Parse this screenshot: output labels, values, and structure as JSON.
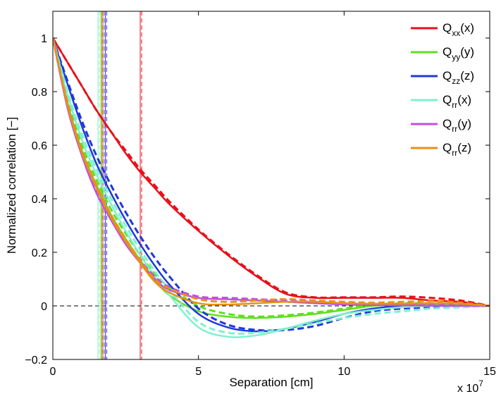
{
  "chart_data": {
    "type": "line",
    "title": "",
    "xlabel": "Separation [cm]",
    "ylabel": "Normalized correlation [−]",
    "x_multiplier_label": "x 10",
    "x_multiplier_exponent": "7",
    "xlim": [
      0,
      15
    ],
    "ylim": [
      -0.2,
      1.1
    ],
    "xticks": [
      0,
      5,
      10,
      15
    ],
    "xtick_labels": [
      "0",
      "5",
      "10",
      "15"
    ],
    "yticks": [
      -0.2,
      0,
      0.2,
      0.4,
      0.6,
      0.8,
      1
    ],
    "ytick_labels": [
      "−0.2",
      "0",
      "0.2",
      "0.4",
      "0.6",
      "0.8",
      "1"
    ],
    "grid": false,
    "legend_position": "top-right",
    "zero_line": {
      "y": 0,
      "color": "#000000",
      "style": "dashed"
    },
    "series": [
      {
        "name": "Qxx(x)",
        "label_main": "Q",
        "label_sub": "xx",
        "label_tail": "(x)",
        "color": "#e8101a",
        "x": [
          0,
          0.5,
          1,
          1.5,
          2,
          2.5,
          3,
          3.5,
          4,
          5,
          6,
          7,
          8,
          9,
          10,
          11,
          12,
          13,
          14,
          15
        ],
        "values": [
          1,
          0.91,
          0.82,
          0.73,
          0.65,
          0.57,
          0.5,
          0.44,
          0.38,
          0.28,
          0.19,
          0.11,
          0.045,
          0.03,
          0.03,
          0.03,
          0.03,
          0.02,
          0.015,
          0.0
        ],
        "dashed_values": [
          1,
          0.91,
          0.82,
          0.73,
          0.65,
          0.58,
          0.51,
          0.45,
          0.39,
          0.285,
          0.195,
          0.115,
          0.05,
          0.032,
          0.032,
          0.032,
          0.035,
          0.03,
          0.02,
          0.0
        ],
        "vline_x": 3.0
      },
      {
        "name": "Qyy(y)",
        "label_main": "Q",
        "label_sub": "yy",
        "label_tail": "(y)",
        "color": "#60e020",
        "x": [
          0,
          0.5,
          1,
          1.5,
          2,
          2.5,
          3,
          3.5,
          4,
          5,
          6,
          7,
          8,
          9,
          10,
          11,
          12,
          13,
          14,
          15
        ],
        "values": [
          1,
          0.76,
          0.58,
          0.45,
          0.34,
          0.25,
          0.17,
          0.1,
          0.04,
          -0.02,
          -0.04,
          -0.045,
          -0.04,
          -0.03,
          -0.015,
          0.0,
          0.005,
          0.005,
          0.005,
          0.0
        ],
        "dashed_values": [
          1,
          0.77,
          0.6,
          0.47,
          0.36,
          0.27,
          0.19,
          0.12,
          0.07,
          0.0,
          -0.03,
          -0.04,
          -0.035,
          -0.025,
          -0.01,
          0.005,
          0.01,
          0.01,
          0.005,
          0.0
        ],
        "vline_x": 1.65
      },
      {
        "name": "Qzz(z)",
        "label_main": "Q",
        "label_sub": "zz",
        "label_tail": "(z)",
        "color": "#2038d8",
        "x": [
          0,
          0.5,
          1,
          1.5,
          2,
          2.5,
          3,
          3.5,
          4,
          5,
          6,
          7,
          8,
          9,
          10,
          11,
          12,
          13,
          14,
          15
        ],
        "values": [
          1,
          0.83,
          0.67,
          0.53,
          0.42,
          0.32,
          0.23,
          0.15,
          0.08,
          -0.03,
          -0.08,
          -0.095,
          -0.085,
          -0.06,
          -0.03,
          -0.01,
          0.0,
          0.0,
          0.0,
          0.0
        ],
        "dashed_values": [
          1,
          0.84,
          0.69,
          0.56,
          0.45,
          0.35,
          0.26,
          0.18,
          0.11,
          -0.01,
          -0.07,
          -0.09,
          -0.09,
          -0.075,
          -0.045,
          -0.02,
          -0.01,
          -0.005,
          0.0,
          0.0
        ],
        "vline_x": 1.8
      },
      {
        "name": "Qrr(x)",
        "label_main": "Q",
        "label_sub": "rr",
        "label_tail": "(x)",
        "color": "#7ff0d0",
        "x": [
          0,
          0.5,
          1,
          1.5,
          2,
          2.5,
          3,
          3.5,
          4,
          5,
          6,
          7,
          8,
          9,
          10,
          11,
          12,
          13,
          14,
          15
        ],
        "values": [
          1,
          0.79,
          0.62,
          0.49,
          0.38,
          0.28,
          0.19,
          0.11,
          0.04,
          -0.08,
          -0.115,
          -0.11,
          -0.085,
          -0.055,
          -0.03,
          -0.015,
          -0.005,
          0.0,
          0.0,
          0.0
        ],
        "dashed_values": [
          1,
          0.8,
          0.64,
          0.51,
          0.4,
          0.3,
          0.21,
          0.13,
          0.06,
          -0.06,
          -0.1,
          -0.1,
          -0.085,
          -0.065,
          -0.045,
          -0.03,
          -0.02,
          -0.01,
          -0.005,
          0.0
        ],
        "vline_x": 1.55
      },
      {
        "name": "Qrr(y)",
        "label_main": "Q",
        "label_sub": "rr",
        "label_tail": "(y)",
        "color": "#c050e0",
        "x": [
          0,
          0.5,
          1,
          1.5,
          2,
          2.5,
          3,
          3.5,
          4,
          5,
          6,
          7,
          8,
          9,
          10,
          11,
          12,
          13,
          14,
          15
        ],
        "values": [
          1,
          0.74,
          0.56,
          0.42,
          0.32,
          0.23,
          0.16,
          0.1,
          0.06,
          0.03,
          0.025,
          0.02,
          0.015,
          0.01,
          0.005,
          0.003,
          0.002,
          0.001,
          0.0,
          0.0
        ],
        "dashed_values": [
          1,
          0.75,
          0.57,
          0.43,
          0.33,
          0.24,
          0.17,
          0.11,
          0.07,
          0.035,
          0.03,
          0.025,
          0.02,
          0.015,
          0.01,
          0.008,
          0.006,
          0.004,
          0.002,
          0.0
        ],
        "vline_x": 1.72
      },
      {
        "name": "Qrr(z)",
        "label_main": "Q",
        "label_sub": "rr",
        "label_tail": "(z)",
        "color": "#e89018",
        "x": [
          0,
          0.5,
          1,
          1.5,
          2,
          2.5,
          3,
          3.5,
          4,
          5,
          6,
          7,
          8,
          9,
          10,
          11,
          12,
          13,
          14,
          15
        ],
        "values": [
          1,
          0.75,
          0.57,
          0.44,
          0.33,
          0.24,
          0.16,
          0.09,
          0.05,
          0.01,
          0.005,
          0.01,
          0.015,
          0.015,
          0.01,
          0.008,
          0.008,
          0.01,
          0.008,
          0.0
        ],
        "dashed_values": [
          1,
          0.76,
          0.58,
          0.45,
          0.34,
          0.25,
          0.17,
          0.1,
          0.065,
          0.025,
          0.015,
          0.02,
          0.025,
          0.02,
          0.015,
          0.012,
          0.015,
          0.018,
          0.012,
          0.0
        ],
        "vline_x": 1.68
      }
    ]
  }
}
